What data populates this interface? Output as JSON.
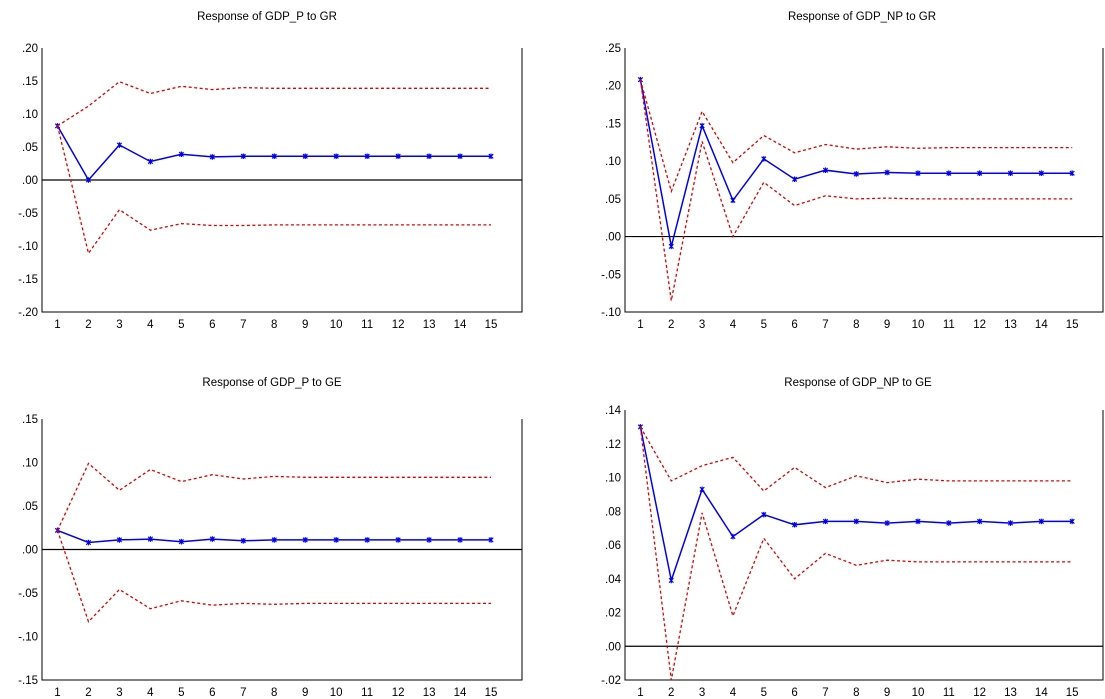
{
  "colors": {
    "response_line": "#0000ee",
    "confidence_band": "#e00000",
    "frame": "#000000",
    "zero_line": "#000000"
  },
  "chart_data": [
    {
      "type": "line",
      "title": "Response of GDP_P to GR",
      "x": [
        1,
        2,
        3,
        4,
        5,
        6,
        7,
        8,
        9,
        10,
        11,
        12,
        13,
        14,
        15
      ],
      "ylim": [
        -0.2,
        0.2
      ],
      "y_ticks": [
        0.2,
        0.15,
        0.1,
        0.05,
        0.0,
        -0.05,
        -0.1,
        -0.15,
        -0.2
      ],
      "y_tick_labels": [
        ".20",
        ".15",
        ".10",
        ".05",
        ".00",
        "-.05",
        "-.10",
        "-.15",
        "-.20"
      ],
      "x_tick_labels": [
        "1",
        "2",
        "3",
        "4",
        "5",
        "6",
        "7",
        "8",
        "9",
        "10",
        "11",
        "12",
        "13",
        "14",
        "15"
      ],
      "series": [
        {
          "role": "response",
          "values": [
            0.082,
            0.0,
            0.053,
            0.028,
            0.039,
            0.035,
            0.036,
            0.036,
            0.036,
            0.036,
            0.036,
            0.036,
            0.036,
            0.036,
            0.036
          ]
        },
        {
          "role": "upper",
          "values": [
            0.082,
            0.112,
            0.149,
            0.131,
            0.142,
            0.137,
            0.14,
            0.139,
            0.139,
            0.139,
            0.139,
            0.139,
            0.139,
            0.139,
            0.139
          ]
        },
        {
          "role": "lower",
          "values": [
            0.082,
            -0.111,
            -0.045,
            -0.076,
            -0.066,
            -0.069,
            -0.069,
            -0.068,
            -0.068,
            -0.068,
            -0.068,
            -0.068,
            -0.068,
            -0.068,
            -0.068
          ]
        }
      ]
    },
    {
      "type": "line",
      "title": "Response of GDP_NP to GR",
      "x": [
        1,
        2,
        3,
        4,
        5,
        6,
        7,
        8,
        9,
        10,
        11,
        12,
        13,
        14,
        15
      ],
      "ylim": [
        -0.1,
        0.25
      ],
      "y_ticks": [
        0.25,
        0.2,
        0.15,
        0.1,
        0.05,
        0.0,
        -0.05,
        -0.1
      ],
      "y_tick_labels": [
        ".25",
        ".20",
        ".15",
        ".10",
        ".05",
        ".00",
        "-.05",
        "-.10"
      ],
      "x_tick_labels": [
        "1",
        "2",
        "3",
        "4",
        "5",
        "6",
        "7",
        "8",
        "9",
        "10",
        "11",
        "12",
        "13",
        "14",
        "15"
      ],
      "series": [
        {
          "role": "response",
          "values": [
            0.208,
            -0.013,
            0.147,
            0.048,
            0.103,
            0.076,
            0.088,
            0.083,
            0.085,
            0.084,
            0.084,
            0.084,
            0.084,
            0.084,
            0.084
          ]
        },
        {
          "role": "upper",
          "values": [
            0.208,
            0.06,
            0.166,
            0.098,
            0.134,
            0.111,
            0.122,
            0.116,
            0.119,
            0.117,
            0.118,
            0.118,
            0.118,
            0.118,
            0.118
          ]
        },
        {
          "role": "lower",
          "values": [
            0.208,
            -0.085,
            0.126,
            0.0,
            0.072,
            0.041,
            0.054,
            0.05,
            0.051,
            0.05,
            0.05,
            0.05,
            0.05,
            0.05,
            0.05
          ]
        }
      ]
    },
    {
      "type": "line",
      "title": "Response of GDP_P to GE",
      "x": [
        1,
        2,
        3,
        4,
        5,
        6,
        7,
        8,
        9,
        10,
        11,
        12,
        13,
        14,
        15
      ],
      "ylim": [
        -0.15,
        0.15
      ],
      "y_ticks": [
        0.15,
        0.1,
        0.05,
        0.0,
        -0.05,
        -0.1,
        -0.15
      ],
      "y_tick_labels": [
        ".15",
        ".10",
        ".05",
        ".00",
        "-.05",
        "-.10",
        "-.15"
      ],
      "x_tick_labels": [
        "1",
        "2",
        "3",
        "4",
        "5",
        "6",
        "7",
        "8",
        "9",
        "10",
        "11",
        "12",
        "13",
        "14",
        "15"
      ],
      "series": [
        {
          "role": "response",
          "values": [
            0.022,
            0.008,
            0.011,
            0.012,
            0.009,
            0.012,
            0.01,
            0.011,
            0.011,
            0.011,
            0.011,
            0.011,
            0.011,
            0.011,
            0.011
          ]
        },
        {
          "role": "upper",
          "values": [
            0.022,
            0.099,
            0.068,
            0.092,
            0.078,
            0.086,
            0.081,
            0.084,
            0.083,
            0.083,
            0.083,
            0.083,
            0.083,
            0.083,
            0.083
          ]
        },
        {
          "role": "lower",
          "values": [
            0.022,
            -0.083,
            -0.046,
            -0.068,
            -0.059,
            -0.064,
            -0.062,
            -0.063,
            -0.062,
            -0.062,
            -0.062,
            -0.062,
            -0.062,
            -0.062,
            -0.062
          ]
        }
      ]
    },
    {
      "type": "line",
      "title": "Response of GDP_NP to GE",
      "x": [
        1,
        2,
        3,
        4,
        5,
        6,
        7,
        8,
        9,
        10,
        11,
        12,
        13,
        14,
        15
      ],
      "ylim": [
        -0.02,
        0.14
      ],
      "y_ticks": [
        0.14,
        0.12,
        0.1,
        0.08,
        0.06,
        0.04,
        0.02,
        0.0,
        -0.02
      ],
      "y_tick_labels": [
        ".14",
        ".12",
        ".10",
        ".08",
        ".06",
        ".04",
        ".02",
        ".00",
        "-.02"
      ],
      "x_tick_labels": [
        "1",
        "2",
        "3",
        "4",
        "5",
        "6",
        "7",
        "8",
        "9",
        "10",
        "11",
        "12",
        "13",
        "14",
        "15"
      ],
      "series": [
        {
          "role": "response",
          "values": [
            0.13,
            0.039,
            0.093,
            0.065,
            0.078,
            0.072,
            0.074,
            0.074,
            0.073,
            0.074,
            0.073,
            0.074,
            0.073,
            0.074,
            0.074
          ]
        },
        {
          "role": "upper",
          "values": [
            0.13,
            0.098,
            0.107,
            0.112,
            0.092,
            0.106,
            0.094,
            0.101,
            0.097,
            0.099,
            0.098,
            0.098,
            0.098,
            0.098,
            0.098
          ]
        },
        {
          "role": "lower",
          "values": [
            0.13,
            -0.02,
            0.079,
            0.018,
            0.064,
            0.04,
            0.055,
            0.048,
            0.051,
            0.05,
            0.05,
            0.05,
            0.05,
            0.05,
            0.05
          ]
        }
      ]
    }
  ]
}
